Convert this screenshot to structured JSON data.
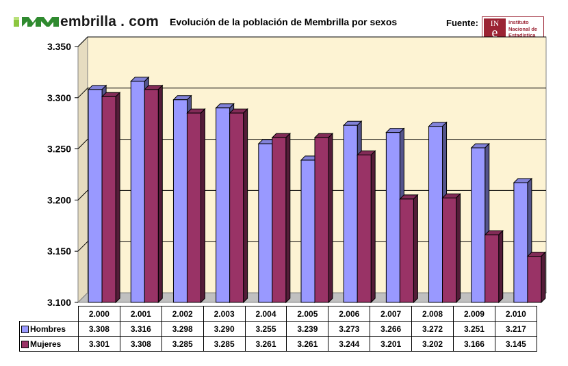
{
  "brand": {
    "logo_text": "embrilla . com"
  },
  "header": {
    "title": "Evolución de la población de Membrilla por sexos",
    "source_label": "Fuente:"
  },
  "ine": {
    "top": "IN",
    "letter": "e",
    "line1": "Instituto",
    "line2": "Nacional de",
    "line3": "Estadística",
    "color": "#9b2333"
  },
  "chart_data": {
    "type": "bar",
    "categories": [
      "2.000",
      "2.001",
      "2.002",
      "2.003",
      "2.004",
      "2.005",
      "2.006",
      "2.007",
      "2.008",
      "2.009",
      "2.010"
    ],
    "series": [
      {
        "name": "Hombres",
        "color": "#9999ff",
        "values": [
          3308,
          3316,
          3298,
          3290,
          3255,
          3239,
          3273,
          3266,
          3272,
          3251,
          3217
        ],
        "labels": [
          "3.308",
          "3.316",
          "3.298",
          "3.290",
          "3.255",
          "3.239",
          "3.273",
          "3.266",
          "3.272",
          "3.251",
          "3.217"
        ]
      },
      {
        "name": "Mujeres",
        "color": "#993366",
        "values": [
          3301,
          3308,
          3285,
          3285,
          3261,
          3261,
          3244,
          3201,
          3202,
          3166,
          3145
        ],
        "labels": [
          "3.301",
          "3.308",
          "3.285",
          "3.285",
          "3.261",
          "3.261",
          "3.244",
          "3.201",
          "3.202",
          "3.166",
          "3.145"
        ]
      }
    ],
    "yticks": [
      "3.100",
      "3.150",
      "3.200",
      "3.250",
      "3.300",
      "3.350"
    ],
    "ylim": [
      3100,
      3350
    ],
    "grid": true,
    "plot_background": "#fdf3d3",
    "legend": "data-table"
  }
}
